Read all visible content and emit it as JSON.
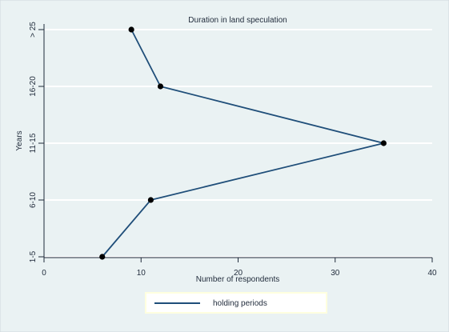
{
  "colors": {
    "outer_background": "#eaf2f3",
    "plot_background": "#eaf2f3",
    "grid": "#ffffff",
    "axis": "#1f2a3a",
    "line": "#1f4e79",
    "marker": "#000000",
    "legend_background": "#ffffff",
    "legend_border": "#ffffdf"
  },
  "chart_data": {
    "type": "line",
    "title": "Duration in land speculation",
    "xlabel": "Number of respondents",
    "ylabel": "Years",
    "x_ticks": [
      0,
      10,
      20,
      30,
      40
    ],
    "xlim": [
      0,
      40
    ],
    "y_categories": [
      "1-5",
      "6-10",
      "11-15",
      "16-20",
      "> 25"
    ],
    "series": [
      {
        "name": "holding periods",
        "points": [
          {
            "category": "> 25",
            "value": 9
          },
          {
            "category": "16-20",
            "value": 12
          },
          {
            "category": "11-15",
            "value": 35
          },
          {
            "category": "6-10",
            "value": 11
          },
          {
            "category": "1-5",
            "value": 6
          }
        ]
      }
    ],
    "grid": true,
    "legend_position": "bottom"
  }
}
